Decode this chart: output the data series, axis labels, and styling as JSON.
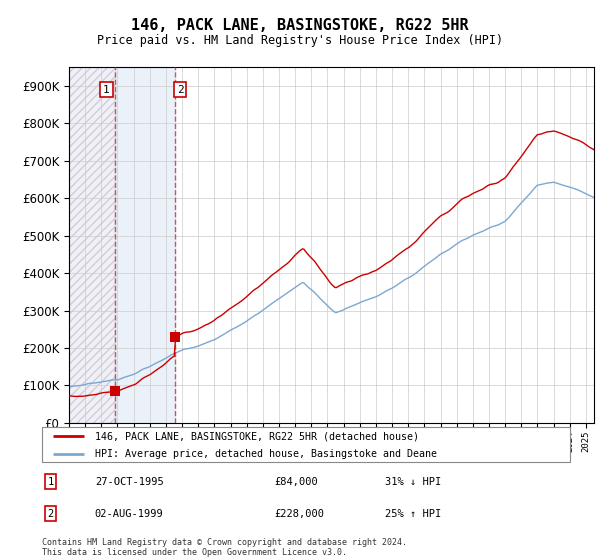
{
  "title": "146, PACK LANE, BASINGSTOKE, RG22 5HR",
  "subtitle": "Price paid vs. HM Land Registry's House Price Index (HPI)",
  "ylim": [
    0,
    950000
  ],
  "yticks": [
    0,
    100000,
    200000,
    300000,
    400000,
    500000,
    600000,
    700000,
    800000,
    900000
  ],
  "transaction1": {
    "date_x": 1995.82,
    "price": 84000,
    "label": "1"
  },
  "transaction2": {
    "date_x": 1999.58,
    "price": 228000,
    "label": "2"
  },
  "sale1_info": [
    "1",
    "27-OCT-1995",
    "£84,000",
    "31% ↓ HPI"
  ],
  "sale2_info": [
    "2",
    "02-AUG-1999",
    "£228,000",
    "25% ↑ HPI"
  ],
  "vline1_x": 1995.82,
  "vline2_x": 1999.58,
  "line_red": "#cc0000",
  "line_blue": "#7aa8d2",
  "footer": "Contains HM Land Registry data © Crown copyright and database right 2024.\nThis data is licensed under the Open Government Licence v3.0.",
  "xmin": 1993.0,
  "xmax": 2025.5,
  "legend_label1": "146, PACK LANE, BASINGSTOKE, RG22 5HR (detached house)",
  "legend_label2": "HPI: Average price, detached house, Basingstoke and Deane"
}
